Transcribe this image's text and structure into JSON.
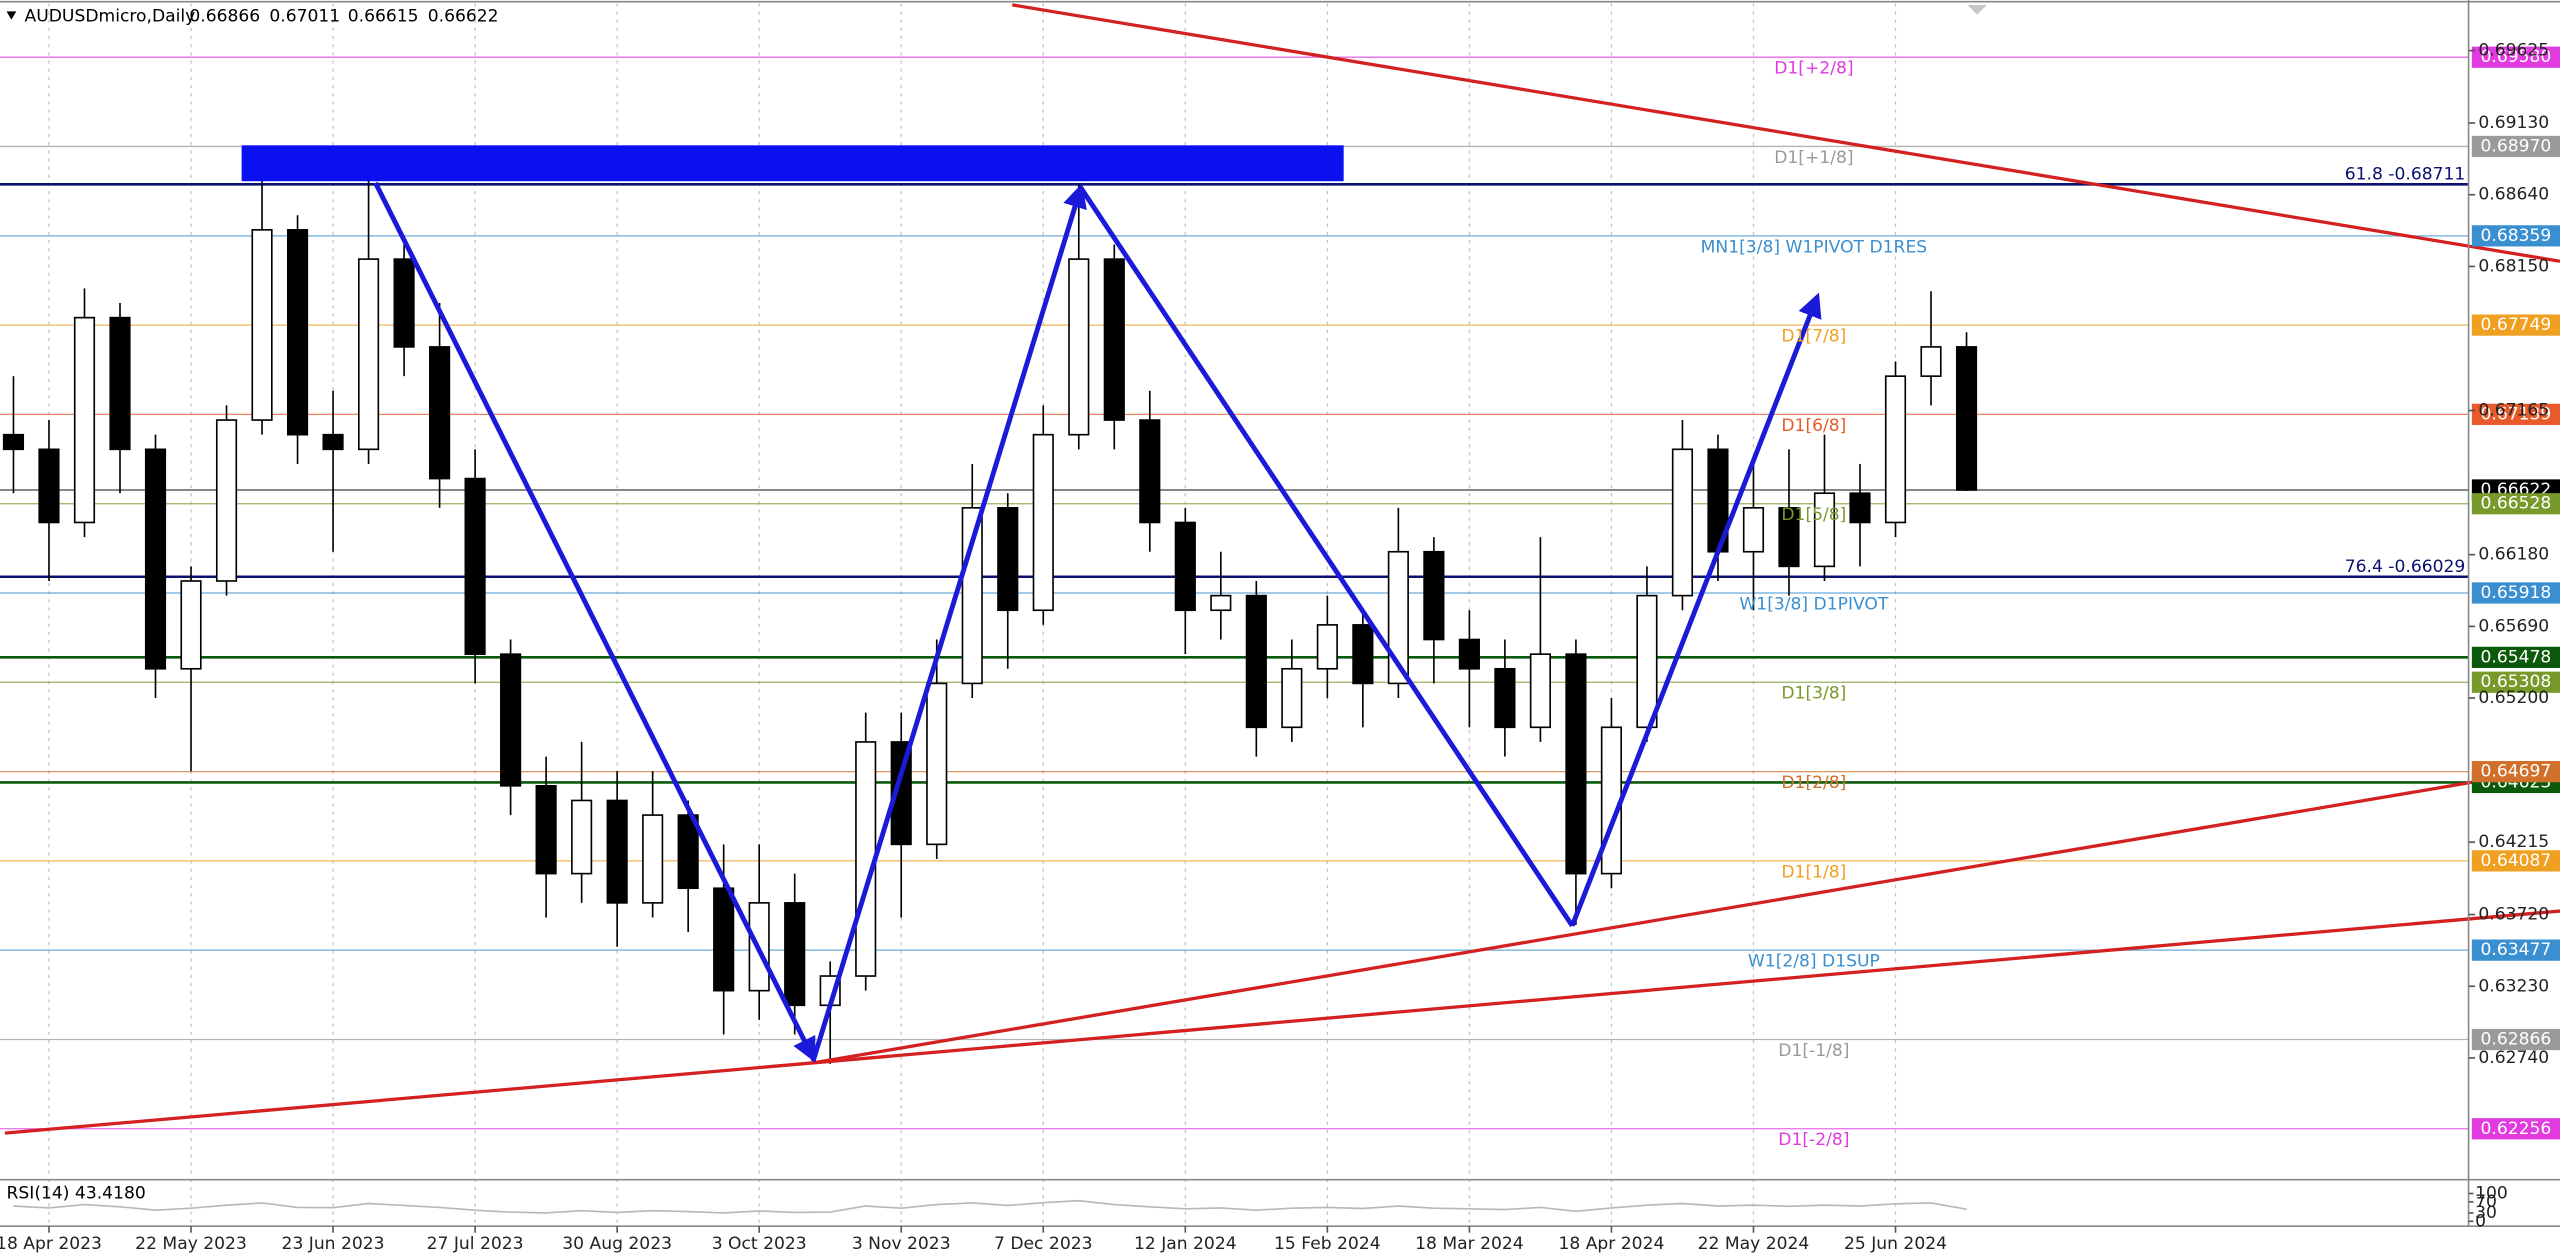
{
  "chart_data": {
    "type": "candlestick",
    "symbol": "AUDUSDmicro,Daily",
    "ohlc_header": [
      0.66866,
      0.67011,
      0.66615,
      0.66622
    ],
    "categories": [
      null,
      "18 Apr 2023",
      null,
      null,
      null,
      "22 May 2023",
      null,
      null,
      null,
      "23 Jun 2023",
      null,
      null,
      null,
      "27 Jul 2023",
      null,
      null,
      null,
      "30 Aug 2023",
      null,
      null,
      null,
      "3 Oct 2023",
      null,
      null,
      null,
      "3 Nov 2023",
      null,
      null,
      null,
      "7 Dec 2023",
      null,
      null,
      null,
      "12 Jan 2024",
      null,
      null,
      null,
      "15 Feb 2024",
      null,
      null,
      null,
      "18 Mar 2024",
      null,
      null,
      null,
      "18 Apr 2024",
      null,
      null,
      null,
      "22 May 2024",
      null,
      null,
      null,
      "25 Jun 2024",
      null,
      null
    ],
    "open": [
      0.67,
      0.669,
      0.664,
      0.678,
      0.669,
      0.654,
      0.66,
      0.671,
      0.684,
      0.67,
      0.669,
      0.682,
      0.676,
      0.667,
      0.655,
      0.646,
      0.64,
      0.645,
      0.638,
      0.644,
      0.639,
      0.632,
      0.638,
      0.631,
      0.633,
      0.649,
      0.642,
      0.653,
      0.665,
      0.658,
      0.67,
      0.682,
      0.671,
      0.664,
      0.658,
      0.659,
      0.65,
      0.654,
      0.657,
      0.653,
      0.662,
      0.656,
      0.654,
      0.65,
      0.655,
      0.64,
      0.65,
      0.659,
      0.669,
      0.662,
      0.665,
      0.661,
      0.666,
      0.664,
      0.674,
      0.676
    ],
    "high": [
      0.674,
      0.671,
      0.68,
      0.679,
      0.67,
      0.661,
      0.672,
      0.6885,
      0.685,
      0.673,
      0.6888,
      0.683,
      0.679,
      0.669,
      0.656,
      0.648,
      0.649,
      0.647,
      0.647,
      0.645,
      0.642,
      0.642,
      0.64,
      0.634,
      0.651,
      0.651,
      0.656,
      0.668,
      0.666,
      0.672,
      0.6871,
      0.683,
      0.673,
      0.665,
      0.662,
      0.66,
      0.656,
      0.659,
      0.658,
      0.665,
      0.663,
      0.658,
      0.656,
      0.663,
      0.656,
      0.652,
      0.661,
      0.671,
      0.67,
      0.668,
      0.669,
      0.67,
      0.668,
      0.675,
      0.6798,
      0.677
    ],
    "low": [
      0.666,
      0.66,
      0.663,
      0.666,
      0.652,
      0.647,
      0.659,
      0.67,
      0.668,
      0.662,
      0.668,
      0.674,
      0.665,
      0.653,
      0.644,
      0.637,
      0.638,
      0.635,
      0.637,
      0.636,
      0.629,
      0.63,
      0.629,
      0.627,
      0.632,
      0.637,
      0.641,
      0.652,
      0.654,
      0.657,
      0.669,
      0.669,
      0.662,
      0.655,
      0.656,
      0.648,
      0.649,
      0.652,
      0.65,
      0.652,
      0.653,
      0.65,
      0.648,
      0.649,
      0.6365,
      0.639,
      0.649,
      0.658,
      0.66,
      0.658,
      0.659,
      0.66,
      0.661,
      0.663,
      0.672,
      0.66615
    ],
    "close": [
      0.669,
      0.664,
      0.678,
      0.669,
      0.654,
      0.66,
      0.671,
      0.684,
      0.67,
      0.669,
      0.682,
      0.676,
      0.667,
      0.655,
      0.646,
      0.64,
      0.645,
      0.638,
      0.644,
      0.639,
      0.632,
      0.638,
      0.631,
      0.633,
      0.649,
      0.642,
      0.653,
      0.665,
      0.658,
      0.67,
      0.682,
      0.671,
      0.664,
      0.658,
      0.659,
      0.65,
      0.654,
      0.657,
      0.653,
      0.662,
      0.656,
      0.654,
      0.65,
      0.655,
      0.64,
      0.65,
      0.659,
      0.669,
      0.662,
      0.665,
      0.661,
      0.666,
      0.664,
      0.674,
      0.676,
      0.66622
    ],
    "ylim": [
      0.61914,
      0.69971
    ],
    "yticks": [
      0.69625,
      {
        "value": 0.6913,
        "label": "0.69130"
      },
      {
        "value": 0.6864,
        "label": "0.68640"
      },
      {
        "value": 0.6815,
        "label": "0.68150"
      },
      0.67165,
      {
        "value": 0.6618,
        "label": "0.66180"
      },
      {
        "value": 0.6569,
        "label": "0.65690"
      },
      {
        "value": 0.652,
        "label": "0.65200"
      },
      0.64215,
      {
        "value": 0.6372,
        "label": "0.63720"
      },
      {
        "value": 0.6323,
        "label": "0.63230"
      },
      {
        "value": 0.6274,
        "label": "0.62740"
      }
    ],
    "levels": [
      {
        "name": "D1[+2/8]",
        "value": 0.6958,
        "value_label": "0.69580",
        "color": "#e03ae0"
      },
      {
        "name": "D1[+1/8]",
        "value": 0.6897,
        "value_label": "0.68970",
        "color": "#9a9a9a"
      },
      {
        "name": "MN1[3/8] W1PIVOT D1RES",
        "value": 0.68359,
        "color": "#3a8fd0"
      },
      {
        "name": "D1[7/8]",
        "value": 0.67749,
        "color": "#f0a020"
      },
      {
        "name": "D1[6/8]",
        "value": 0.67139,
        "color": "#e85a2a"
      },
      {
        "value": 0.66622,
        "color": "#000000"
      },
      {
        "name": "D1[5/8]",
        "value": 0.66528,
        "color": "#789a2a"
      },
      {
        "name": "W1[3/8] D1PIVOT",
        "value": 0.65918,
        "color": "#3a8fd0"
      },
      {
        "value": 0.65478,
        "color": "#0b5a0b",
        "line_width": 1.6
      },
      {
        "name": "D1[3/8]",
        "value": 0.65308,
        "color": "#789a2a"
      },
      {
        "value": 0.64623,
        "color": "#0b5a0b",
        "line_width": 1.6
      },
      {
        "name": "D1[2/8]",
        "value": 0.64697,
        "color": "#d0702a"
      },
      {
        "name": "D1[1/8]",
        "value": 0.64087,
        "color": "#f0a020"
      },
      {
        "name": "W1[2/8] D1SUP",
        "value": 0.63477,
        "color": "#3a8fd0"
      },
      {
        "name": "D1[-1/8]",
        "value": 0.62866,
        "color": "#9a9a9a"
      },
      {
        "name": "D1[-2/8]",
        "value": 0.62256,
        "color": "#e03ae0"
      }
    ],
    "fibo_levels": [
      {
        "label": "61.8 -0.68711",
        "value": 0.68711
      },
      {
        "label": "76.4 -0.66029",
        "value": 0.66029
      }
    ],
    "fibo_color": "#0a1070",
    "bull_color": "#ffffff",
    "bear_color": "#000000",
    "rsi": {
      "label": "RSI(14) 43.4180",
      "values": [
        55,
        48,
        60,
        52,
        40,
        47,
        58,
        66,
        50,
        49,
        64,
        57,
        50,
        40,
        33,
        30,
        38,
        32,
        38,
        35,
        30,
        37,
        32,
        33,
        55,
        47,
        60,
        66,
        57,
        67,
        74,
        60,
        52,
        45,
        48,
        40,
        47,
        50,
        46,
        55,
        47,
        45,
        42,
        50,
        36,
        48,
        58,
        64,
        55,
        58,
        54,
        58,
        55,
        63,
        66,
        43.418
      ],
      "ylim": [
        0,
        100
      ],
      "yticks": [
        100,
        70,
        30,
        0
      ],
      "color": "#b8b8b8"
    },
    "grid": true
  }
}
